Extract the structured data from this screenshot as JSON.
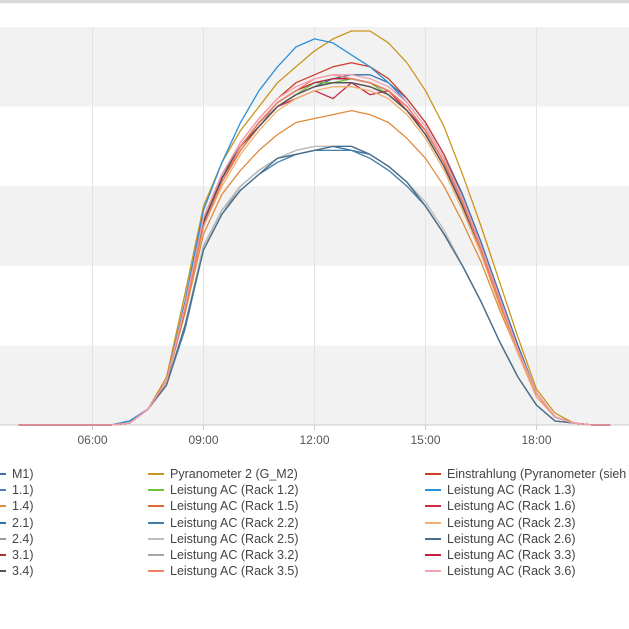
{
  "chart_data": {
    "type": "line",
    "xlim": [
      3.5,
      20.5
    ],
    "ylim": [
      0,
      1.0
    ],
    "x_ticks": [
      "06:00",
      "09:00",
      "12:00",
      "15:00",
      "18:00"
    ],
    "x_tick_values": [
      6,
      9,
      12,
      15,
      18
    ],
    "grid": "alternating horizontal bands, vertical lines at ticks",
    "legend_placement": "bottom",
    "x": [
      4,
      5,
      6,
      6.5,
      7,
      7.5,
      8,
      8.5,
      9,
      9.5,
      10,
      10.5,
      11,
      11.5,
      12,
      12.5,
      13,
      13.5,
      14,
      14.5,
      15,
      15.5,
      16,
      16.5,
      17,
      17.5,
      18,
      18.5,
      19,
      19.5,
      20
    ],
    "series": [
      {
        "name": "",
        "legend": "M1)",
        "color": "#3a6fb0",
        "values": [
          0,
          0,
          0,
          0,
          0.005,
          0.04,
          0.11,
          0.3,
          0.52,
          0.63,
          0.7,
          0.75,
          0.8,
          0.83,
          0.85,
          0.87,
          0.88,
          0.88,
          0.86,
          0.82,
          0.76,
          0.68,
          0.58,
          0.46,
          0.33,
          0.2,
          0.08,
          0.02,
          0.005,
          0,
          0
        ]
      },
      {
        "name": "Pyranometer 2 (G_M2)",
        "color": "#c8961e",
        "values": [
          0,
          0,
          0,
          0,
          0.005,
          0.04,
          0.12,
          0.33,
          0.55,
          0.66,
          0.74,
          0.8,
          0.86,
          0.9,
          0.94,
          0.97,
          0.99,
          0.99,
          0.96,
          0.91,
          0.84,
          0.75,
          0.63,
          0.5,
          0.36,
          0.22,
          0.09,
          0.03,
          0.005,
          0,
          0
        ]
      },
      {
        "name": "Einstrahlung (Pyranometer (sieh",
        "color": "#d03c2a",
        "values": [
          0,
          0,
          0,
          0,
          0.005,
          0.04,
          0.11,
          0.3,
          0.52,
          0.63,
          0.71,
          0.77,
          0.82,
          0.86,
          0.88,
          0.9,
          0.91,
          0.9,
          0.87,
          0.82,
          0.76,
          0.68,
          0.57,
          0.45,
          0.32,
          0.19,
          0.08,
          0.02,
          0.005,
          0,
          0
        ]
      },
      {
        "name": "",
        "legend": "1.1)",
        "color": "#4a7fc0",
        "values": [
          0,
          0,
          0,
          0,
          0.01,
          0.04,
          0.11,
          0.29,
          0.51,
          0.62,
          0.7,
          0.76,
          0.81,
          0.84,
          0.86,
          0.87,
          0.87,
          0.86,
          0.84,
          0.8,
          0.74,
          0.66,
          0.56,
          0.44,
          0.31,
          0.19,
          0.08,
          0.02,
          0.005,
          0,
          0
        ]
      },
      {
        "name": "Leistung AC (Rack 1.2)",
        "color": "#6ac43a",
        "values": [
          0,
          0,
          0,
          0,
          0.005,
          0.04,
          0.11,
          0.29,
          0.51,
          0.62,
          0.7,
          0.76,
          0.8,
          0.83,
          0.86,
          0.86,
          0.87,
          0.86,
          0.83,
          0.79,
          0.73,
          0.65,
          0.55,
          0.44,
          0.31,
          0.19,
          0.08,
          0.02,
          0.005,
          0,
          0
        ]
      },
      {
        "name": "Leistung AC (Rack 1.3)",
        "color": "#2e90d9",
        "values": [
          0,
          0,
          0,
          0,
          0.01,
          0.04,
          0.11,
          0.31,
          0.54,
          0.66,
          0.76,
          0.84,
          0.9,
          0.95,
          0.97,
          0.96,
          0.93,
          0.9,
          0.86,
          0.81,
          0.75,
          0.67,
          0.57,
          0.45,
          0.32,
          0.19,
          0.08,
          0.02,
          0.005,
          0,
          0
        ]
      },
      {
        "name": "",
        "legend": "1.4)",
        "color": "#e08a3c",
        "values": [
          0,
          0,
          0,
          0,
          0.005,
          0.04,
          0.11,
          0.28,
          0.48,
          0.58,
          0.64,
          0.69,
          0.73,
          0.76,
          0.77,
          0.78,
          0.79,
          0.78,
          0.76,
          0.72,
          0.67,
          0.6,
          0.51,
          0.41,
          0.29,
          0.18,
          0.07,
          0.02,
          0.005,
          0,
          0
        ]
      },
      {
        "name": "Leistung AC (Rack 1.5)",
        "color": "#e06a34",
        "values": [
          0,
          0,
          0,
          0,
          0.005,
          0.04,
          0.11,
          0.29,
          0.5,
          0.61,
          0.69,
          0.75,
          0.8,
          0.83,
          0.85,
          0.86,
          0.86,
          0.85,
          0.83,
          0.79,
          0.73,
          0.65,
          0.55,
          0.44,
          0.31,
          0.18,
          0.07,
          0.02,
          0.005,
          0,
          0
        ]
      },
      {
        "name": "Leistung AC (Rack 1.6)",
        "color": "#cc2b4a",
        "values": [
          0,
          0,
          0,
          0,
          0.005,
          0.04,
          0.11,
          0.3,
          0.51,
          0.62,
          0.7,
          0.76,
          0.8,
          0.82,
          0.84,
          0.82,
          0.86,
          0.83,
          0.84,
          0.79,
          0.74,
          0.66,
          0.56,
          0.44,
          0.31,
          0.19,
          0.08,
          0.02,
          0.005,
          0,
          0
        ]
      },
      {
        "name": "",
        "legend": "2.1)",
        "color": "#2d6ea6",
        "values": [
          0,
          0,
          0,
          0,
          0.005,
          0.04,
          0.1,
          0.25,
          0.45,
          0.54,
          0.6,
          0.64,
          0.67,
          0.68,
          0.69,
          0.7,
          0.69,
          0.68,
          0.65,
          0.61,
          0.55,
          0.48,
          0.4,
          0.31,
          0.21,
          0.12,
          0.05,
          0.01,
          0.005,
          0,
          0
        ]
      },
      {
        "name": "Leistung AC (Rack 2.2)",
        "color": "#3f7fa8",
        "values": [
          0,
          0,
          0,
          0,
          0.005,
          0.04,
          0.1,
          0.24,
          0.44,
          0.53,
          0.59,
          0.63,
          0.66,
          0.68,
          0.69,
          0.69,
          0.69,
          0.67,
          0.64,
          0.6,
          0.55,
          0.48,
          0.4,
          0.31,
          0.21,
          0.12,
          0.05,
          0.01,
          0.005,
          0,
          0
        ]
      },
      {
        "name": "Leistung AC (Rack 2.3)",
        "color": "#f0b070",
        "values": [
          0,
          0,
          0,
          0,
          0.005,
          0.04,
          0.11,
          0.29,
          0.5,
          0.6,
          0.68,
          0.74,
          0.79,
          0.82,
          0.84,
          0.85,
          0.85,
          0.84,
          0.82,
          0.78,
          0.72,
          0.64,
          0.54,
          0.43,
          0.3,
          0.18,
          0.07,
          0.02,
          0.005,
          0,
          0
        ]
      },
      {
        "name": "",
        "legend": "2.4)",
        "color": "#9a9a9a",
        "values": [
          0,
          0,
          0,
          0,
          0.005,
          0.04,
          0.1,
          0.25,
          0.44,
          0.53,
          0.6,
          0.64,
          0.67,
          0.69,
          0.7,
          0.7,
          0.7,
          0.68,
          0.65,
          0.61,
          0.55,
          0.48,
          0.4,
          0.31,
          0.21,
          0.12,
          0.05,
          0.01,
          0.005,
          0,
          0
        ]
      },
      {
        "name": "Leistung AC (Rack 2.5)",
        "color": "#bdbdbd",
        "values": [
          0,
          0,
          0,
          0,
          0.005,
          0.04,
          0.1,
          0.25,
          0.45,
          0.54,
          0.6,
          0.64,
          0.67,
          0.69,
          0.7,
          0.7,
          0.7,
          0.68,
          0.65,
          0.61,
          0.56,
          0.49,
          0.4,
          0.31,
          0.21,
          0.12,
          0.05,
          0.01,
          0.005,
          0,
          0
        ]
      },
      {
        "name": "Leistung AC (Rack 2.6)",
        "color": "#4a6e8a",
        "values": [
          0,
          0,
          0,
          0,
          0.005,
          0.04,
          0.1,
          0.25,
          0.44,
          0.53,
          0.59,
          0.63,
          0.67,
          0.68,
          0.69,
          0.7,
          0.7,
          0.68,
          0.65,
          0.61,
          0.55,
          0.48,
          0.4,
          0.31,
          0.21,
          0.12,
          0.05,
          0.01,
          0.005,
          0,
          0
        ]
      },
      {
        "name": "",
        "legend": "3.1)",
        "color": "#b03030",
        "values": [
          0,
          0,
          0,
          0,
          0.005,
          0.04,
          0.11,
          0.29,
          0.51,
          0.62,
          0.7,
          0.75,
          0.8,
          0.83,
          0.85,
          0.86,
          0.86,
          0.85,
          0.83,
          0.79,
          0.73,
          0.65,
          0.55,
          0.44,
          0.31,
          0.19,
          0.08,
          0.02,
          0.005,
          0,
          0
        ]
      },
      {
        "name": "Leistung AC (Rack 3.2)",
        "color": "#a8a8a8",
        "values": [
          0,
          0,
          0,
          0,
          0.005,
          0.04,
          0.11,
          0.29,
          0.51,
          0.62,
          0.7,
          0.76,
          0.8,
          0.83,
          0.85,
          0.86,
          0.86,
          0.85,
          0.83,
          0.79,
          0.73,
          0.65,
          0.55,
          0.44,
          0.31,
          0.19,
          0.08,
          0.02,
          0.005,
          0,
          0
        ]
      },
      {
        "name": "Leistung AC (Rack 3.3)",
        "color": "#c41e3a",
        "values": [
          0,
          0,
          0,
          0,
          0.005,
          0.04,
          0.11,
          0.29,
          0.51,
          0.62,
          0.7,
          0.76,
          0.81,
          0.84,
          0.86,
          0.87,
          0.87,
          0.86,
          0.84,
          0.8,
          0.74,
          0.66,
          0.56,
          0.44,
          0.31,
          0.19,
          0.08,
          0.02,
          0.005,
          0,
          0
        ]
      },
      {
        "name": "",
        "legend": "3.4)",
        "color": "#555555",
        "values": [
          0,
          0,
          0,
          0,
          0.005,
          0.04,
          0.11,
          0.29,
          0.51,
          0.62,
          0.7,
          0.75,
          0.8,
          0.83,
          0.85,
          0.86,
          0.86,
          0.85,
          0.83,
          0.79,
          0.73,
          0.65,
          0.55,
          0.44,
          0.31,
          0.19,
          0.08,
          0.02,
          0.005,
          0,
          0
        ]
      },
      {
        "name": "Leistung AC (Rack 3.5)",
        "color": "#f08060",
        "values": [
          0,
          0,
          0,
          0,
          0.005,
          0.04,
          0.11,
          0.29,
          0.5,
          0.61,
          0.7,
          0.76,
          0.81,
          0.84,
          0.87,
          0.88,
          0.87,
          0.86,
          0.84,
          0.8,
          0.74,
          0.66,
          0.56,
          0.44,
          0.31,
          0.19,
          0.08,
          0.02,
          0.005,
          0,
          0
        ]
      },
      {
        "name": "Leistung AC (Rack 3.6)",
        "color": "#f4a0b0",
        "values": [
          0,
          0,
          0,
          0,
          0.005,
          0.04,
          0.11,
          0.3,
          0.52,
          0.63,
          0.71,
          0.77,
          0.82,
          0.85,
          0.87,
          0.88,
          0.88,
          0.87,
          0.85,
          0.81,
          0.75,
          0.67,
          0.57,
          0.45,
          0.32,
          0.19,
          0.08,
          0.02,
          0.005,
          0,
          0
        ]
      }
    ]
  }
}
